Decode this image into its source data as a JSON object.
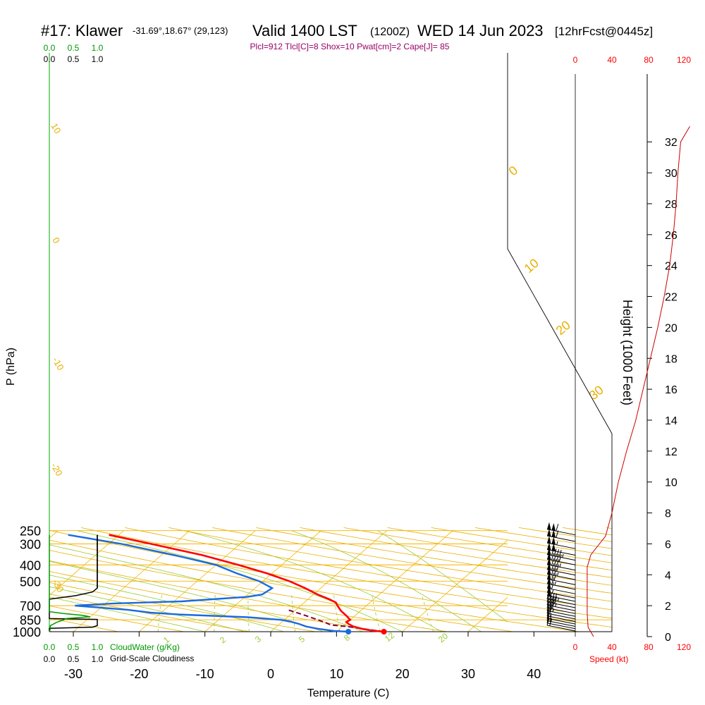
{
  "header": {
    "station": "#17: Klawer",
    "coords": "-31.69°,18.67° (29,123)",
    "valid": "Valid 1400 LST",
    "zulu": "(1200Z)",
    "date": "WED 14 Jun 2023",
    "forecast": "[12hrFcst@0445z]",
    "params": "Plcl=912 Tlcl[C]=8 Shox=10 Pwat[cm]=2 Cape[J]= 85"
  },
  "colors": {
    "temperature": "#ff0000",
    "dewpoint": "#1a6ae0",
    "parcel": "#800040",
    "isobar": "#f4b400",
    "isotherm": "#f4b400",
    "dry_adiabat": "#e8b000",
    "moist_adiabat": "#99cc33",
    "mixing_ratio": "#99cc33",
    "cloud_water": "#009900",
    "cloudiness": "#000000",
    "speed": "#cc0000",
    "labels_red": "#ff0000",
    "labels_green": "#009900"
  },
  "chart_data": {
    "type": "skew-t",
    "xlabel": "Temperature (C)",
    "ylabel": "P (hPa)",
    "right_ylabel": "Height (1000 Feet)",
    "x_ticks": [
      -30,
      -20,
      -10,
      0,
      10,
      20,
      30,
      40
    ],
    "pressure_ticks": [
      250,
      300,
      400,
      500,
      700,
      850,
      1000
    ],
    "height_ticks": [
      0,
      2,
      4,
      6,
      8,
      10,
      12,
      14,
      16,
      18,
      20,
      22,
      24,
      26,
      28,
      30,
      32
    ],
    "xlim": [
      -34,
      46
    ],
    "plim": [
      1000,
      250
    ],
    "mixing_ratio_labels": [
      "1",
      "2",
      "3",
      "5",
      "8",
      "12",
      "20"
    ],
    "dry_adiabat_labels": [
      "10",
      "0",
      "-10",
      "-20",
      "-30"
    ],
    "moist_adiabat_labels": [
      "0",
      "10",
      "20",
      "30"
    ],
    "temperature_profile": [
      {
        "p": 1000,
        "t": 17.2
      },
      {
        "p": 985,
        "t": 15.2
      },
      {
        "p": 960,
        "t": 13.3
      },
      {
        "p": 930,
        "t": 11.6
      },
      {
        "p": 900,
        "t": 10.5
      },
      {
        "p": 875,
        "t": 9.8
      },
      {
        "p": 850,
        "t": 10.0
      },
      {
        "p": 800,
        "t": 8.6
      },
      {
        "p": 750,
        "t": 7.0
      },
      {
        "p": 700,
        "t": 5.6
      },
      {
        "p": 670,
        "t": 4.8
      },
      {
        "p": 640,
        "t": 3.2
      },
      {
        "p": 600,
        "t": 0.6
      },
      {
        "p": 550,
        "t": -2.4
      },
      {
        "p": 500,
        "t": -6.0
      },
      {
        "p": 450,
        "t": -10.7
      },
      {
        "p": 400,
        "t": -16.6
      },
      {
        "p": 350,
        "t": -23.8
      },
      {
        "p": 300,
        "t": -33.5
      },
      {
        "p": 265,
        "t": -41.5
      }
    ],
    "dewpoint_profile": [
      {
        "p": 1000,
        "t": 11.8
      },
      {
        "p": 990,
        "t": 9.5
      },
      {
        "p": 960,
        "t": 6.6
      },
      {
        "p": 930,
        "t": 4.4
      },
      {
        "p": 900,
        "t": 3.0
      },
      {
        "p": 875,
        "t": 1.5
      },
      {
        "p": 850,
        "t": -0.5
      },
      {
        "p": 820,
        "t": -6.0
      },
      {
        "p": 790,
        "t": -17.0
      },
      {
        "p": 770,
        "t": -21.6
      },
      {
        "p": 740,
        "t": -25.6
      },
      {
        "p": 700,
        "t": -34.3
      },
      {
        "p": 680,
        "t": -29.0
      },
      {
        "p": 660,
        "t": -18.8
      },
      {
        "p": 620,
        "t": -9.6
      },
      {
        "p": 600,
        "t": -7.8
      },
      {
        "p": 550,
        "t": -7.4
      },
      {
        "p": 500,
        "t": -10.6
      },
      {
        "p": 450,
        "t": -15.3
      },
      {
        "p": 400,
        "t": -20.0
      },
      {
        "p": 350,
        "t": -28.0
      },
      {
        "p": 300,
        "t": -38.0
      },
      {
        "p": 265,
        "t": -47.7
      }
    ],
    "parcel_profile": [
      {
        "p": 1000,
        "t": 17.2
      },
      {
        "p": 960,
        "t": 13.4
      },
      {
        "p": 930,
        "t": 10.6
      },
      {
        "p": 912,
        "t": 8.0
      },
      {
        "p": 880,
        "t": 6.6
      },
      {
        "p": 850,
        "t": 5.1
      },
      {
        "p": 800,
        "t": 2.4
      },
      {
        "p": 760,
        "t": 0.0
      },
      {
        "p": 740,
        "t": -1.3
      }
    ],
    "surface_points": {
      "temperature": 17.2,
      "dewpoint": 11.8,
      "p": 1000
    },
    "cloud_water_ticks": [
      "0.0",
      "0.5",
      "1.0"
    ],
    "cloud_water_label": "CloudWater (g/Kg)",
    "cloudiness_ticks": [
      "0.0",
      "0.5",
      "1.0"
    ],
    "cloudiness_label": "Grid-Scale Cloudiness",
    "cloudiness_profile": [
      {
        "p": 1000,
        "v": 0.0
      },
      {
        "p": 955,
        "v": 0.0
      },
      {
        "p": 940,
        "v": 0.9
      },
      {
        "p": 920,
        "v": 1.0
      },
      {
        "p": 845,
        "v": 1.0
      },
      {
        "p": 835,
        "v": 0.0
      },
      {
        "p": 640,
        "v": 0.0
      },
      {
        "p": 610,
        "v": 0.55
      },
      {
        "p": 580,
        "v": 0.9
      },
      {
        "p": 550,
        "v": 1.0
      },
      {
        "p": 265,
        "v": 1.0
      }
    ],
    "cloud_water_profile": [
      {
        "p": 1000,
        "v": 0.0
      },
      {
        "p": 960,
        "v": 0.02
      },
      {
        "p": 920,
        "v": 0.02
      },
      {
        "p": 880,
        "v": 0.15
      },
      {
        "p": 850,
        "v": 0.3
      },
      {
        "p": 835,
        "v": 0.35
      },
      {
        "p": 815,
        "v": 0.85
      },
      {
        "p": 800,
        "v": 0.7
      },
      {
        "p": 780,
        "v": 0.3
      },
      {
        "p": 760,
        "v": 0.0
      },
      {
        "p": 265,
        "v": 0.0
      }
    ],
    "speed_ticks": [
      "0",
      "40",
      "80",
      "120"
    ],
    "speed_label": "Speed (kt)",
    "wind_speed_profile": [
      {
        "h": 0,
        "kt": 20
      },
      {
        "h": 0.6,
        "kt": 14
      },
      {
        "h": 1.5,
        "kt": 13
      },
      {
        "h": 3,
        "kt": 13
      },
      {
        "h": 4.5,
        "kt": 13
      },
      {
        "h": 5.3,
        "kt": 17
      },
      {
        "h": 6.5,
        "kt": 33
      },
      {
        "h": 8,
        "kt": 40
      },
      {
        "h": 10,
        "kt": 47
      },
      {
        "h": 12,
        "kt": 56
      },
      {
        "h": 14,
        "kt": 66
      },
      {
        "h": 16,
        "kt": 74
      },
      {
        "h": 18,
        "kt": 82
      },
      {
        "h": 20,
        "kt": 90
      },
      {
        "h": 22,
        "kt": 97
      },
      {
        "h": 24,
        "kt": 103
      },
      {
        "h": 26,
        "kt": 107
      },
      {
        "h": 28,
        "kt": 110
      },
      {
        "h": 30,
        "kt": 112
      },
      {
        "h": 32,
        "kt": 115
      },
      {
        "h": 33,
        "kt": 125
      }
    ],
    "wind_barbs": [
      {
        "p": 265,
        "kt": 110
      },
      {
        "p": 290,
        "kt": 110
      },
      {
        "p": 320,
        "kt": 105
      },
      {
        "p": 350,
        "kt": 100
      },
      {
        "p": 375,
        "kt": 95
      },
      {
        "p": 400,
        "kt": 90
      },
      {
        "p": 430,
        "kt": 85
      },
      {
        "p": 460,
        "kt": 80
      },
      {
        "p": 490,
        "kt": 75
      },
      {
        "p": 525,
        "kt": 70
      },
      {
        "p": 560,
        "kt": 65
      },
      {
        "p": 595,
        "kt": 60
      },
      {
        "p": 630,
        "kt": 55
      },
      {
        "p": 660,
        "kt": 50
      },
      {
        "p": 690,
        "kt": 45
      },
      {
        "p": 720,
        "kt": 40
      },
      {
        "p": 750,
        "kt": 35
      },
      {
        "p": 780,
        "kt": 30
      },
      {
        "p": 810,
        "kt": 25
      },
      {
        "p": 840,
        "kt": 20
      },
      {
        "p": 870,
        "kt": 15
      },
      {
        "p": 900,
        "kt": 15
      },
      {
        "p": 930,
        "kt": 15
      },
      {
        "p": 960,
        "kt": 15
      },
      {
        "p": 990,
        "kt": 20
      }
    ]
  }
}
